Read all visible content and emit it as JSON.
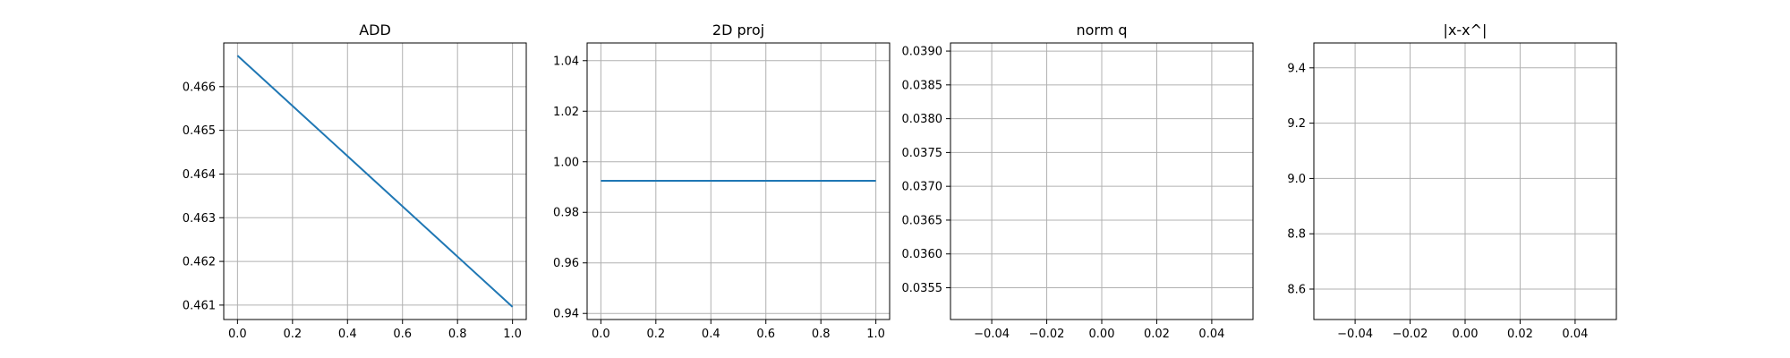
{
  "figure": {
    "background": "#ffffff",
    "line_color": "#1f77b4",
    "grid_color": "#b0b0b0",
    "axis_color": "#000000"
  },
  "chart_data": [
    {
      "type": "line",
      "title": "ADD",
      "xlabel": "",
      "ylabel": "",
      "grid": true,
      "xlim": [
        -0.05,
        1.05
      ],
      "ylim": [
        0.46067,
        0.467
      ],
      "xticks": [
        0.0,
        0.2,
        0.4,
        0.6,
        0.8,
        1.0
      ],
      "xtick_labels": [
        "0.0",
        "0.2",
        "0.4",
        "0.6",
        "0.8",
        "1.0"
      ],
      "yticks": [
        0.461,
        0.462,
        0.463,
        0.464,
        0.465,
        0.466
      ],
      "ytick_labels": [
        "0.461",
        "0.462",
        "0.463",
        "0.464",
        "0.465",
        "0.466"
      ],
      "series": [
        {
          "x": [
            0.0,
            1.0
          ],
          "y": [
            0.46671,
            0.46096
          ]
        }
      ]
    },
    {
      "type": "line",
      "title": "2D proj",
      "xlabel": "",
      "ylabel": "",
      "grid": true,
      "xlim": [
        -0.05,
        1.05
      ],
      "ylim": [
        0.9376,
        1.047
      ],
      "xticks": [
        0.0,
        0.2,
        0.4,
        0.6,
        0.8,
        1.0
      ],
      "xtick_labels": [
        "0.0",
        "0.2",
        "0.4",
        "0.6",
        "0.8",
        "1.0"
      ],
      "yticks": [
        0.94,
        0.96,
        0.98,
        1.0,
        1.02,
        1.04
      ],
      "ytick_labels": [
        "0.94",
        "0.96",
        "0.98",
        "1.00",
        "1.02",
        "1.04"
      ],
      "series": [
        {
          "x": [
            0.0,
            1.0
          ],
          "y": [
            0.9925,
            0.9925
          ]
        }
      ]
    },
    {
      "type": "line",
      "title": "norm q",
      "xlabel": "",
      "ylabel": "",
      "grid": true,
      "xlim": [
        -0.055,
        0.055
      ],
      "ylim": [
        0.03503,
        0.03912
      ],
      "xticks": [
        -0.04,
        -0.02,
        0.0,
        0.02,
        0.04
      ],
      "xtick_labels": [
        "−0.04",
        "−0.02",
        "0.00",
        "0.02",
        "0.04"
      ],
      "yticks": [
        0.0355,
        0.036,
        0.0365,
        0.037,
        0.0375,
        0.038,
        0.0385,
        0.039
      ],
      "ytick_labels": [
        "0.0355",
        "0.0360",
        "0.0365",
        "0.0370",
        "0.0375",
        "0.0380",
        "0.0385",
        "0.0390"
      ],
      "series": []
    },
    {
      "type": "line",
      "title": "|x-x^|",
      "xlabel": "",
      "ylabel": "",
      "grid": true,
      "xlim": [
        -0.055,
        0.055
      ],
      "ylim": [
        8.49,
        9.49
      ],
      "xticks": [
        -0.04,
        -0.02,
        0.0,
        0.02,
        0.04
      ],
      "xtick_labels": [
        "−0.04",
        "−0.02",
        "0.00",
        "0.02",
        "0.04"
      ],
      "yticks": [
        8.6,
        8.8,
        9.0,
        9.2,
        9.4
      ],
      "ytick_labels": [
        "8.6",
        "8.8",
        "9.0",
        "9.2",
        "9.4"
      ],
      "series": []
    }
  ]
}
